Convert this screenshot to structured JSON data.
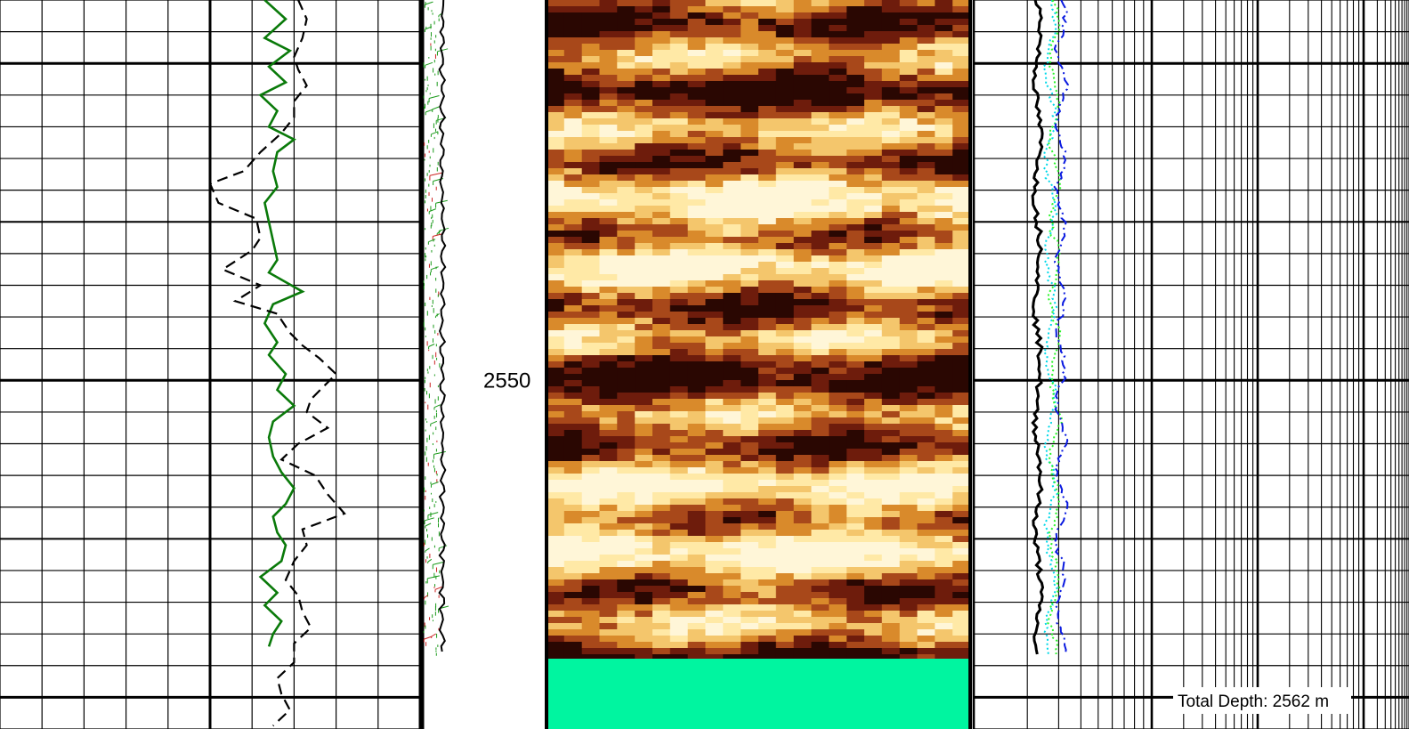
{
  "chart_data": {
    "type": "line",
    "depth_unit": "m",
    "depth_range": [
      2538,
      2561
    ],
    "depth_labels": [
      2550
    ],
    "total_depth": {
      "label": "Total Depth: 2562 m"
    },
    "tracks": [
      {
        "id": "track-1",
        "kind": "linear-grid",
        "curves": [
          {
            "color": "#0a7a0a",
            "style": "solid",
            "points": [
              [
                2538.0,
                0.63
              ],
              [
                2538.6,
                0.68
              ],
              [
                2539.2,
                0.63
              ],
              [
                2539.6,
                0.69
              ],
              [
                2540.1,
                0.64
              ],
              [
                2540.6,
                0.68
              ],
              [
                2541.0,
                0.62
              ],
              [
                2541.5,
                0.66
              ],
              [
                2542.0,
                0.64
              ],
              [
                2542.4,
                0.7
              ],
              [
                2542.8,
                0.66
              ],
              [
                2543.4,
                0.65
              ],
              [
                2543.9,
                0.66
              ],
              [
                2544.4,
                0.63
              ],
              [
                2545.0,
                0.64
              ],
              [
                2545.6,
                0.65
              ],
              [
                2546.2,
                0.66
              ],
              [
                2546.6,
                0.64
              ],
              [
                2547.2,
                0.72
              ],
              [
                2547.6,
                0.65
              ],
              [
                2548.2,
                0.63
              ],
              [
                2548.8,
                0.66
              ],
              [
                2549.2,
                0.64
              ],
              [
                2549.8,
                0.68
              ],
              [
                2550.3,
                0.66
              ],
              [
                2550.8,
                0.7
              ],
              [
                2551.3,
                0.65
              ],
              [
                2551.8,
                0.64
              ],
              [
                2552.4,
                0.65
              ],
              [
                2552.9,
                0.67
              ],
              [
                2553.4,
                0.7
              ],
              [
                2553.9,
                0.68
              ],
              [
                2554.3,
                0.65
              ],
              [
                2554.8,
                0.66
              ],
              [
                2555.2,
                0.68
              ],
              [
                2555.7,
                0.67
              ],
              [
                2556.2,
                0.62
              ],
              [
                2556.7,
                0.66
              ],
              [
                2557.1,
                0.63
              ],
              [
                2557.6,
                0.67
              ],
              [
                2558.0,
                0.65
              ],
              [
                2558.4,
                0.64
              ]
            ]
          },
          {
            "color": "#000000",
            "style": "dashed",
            "points": [
              [
                2538.0,
                0.71
              ],
              [
                2538.6,
                0.73
              ],
              [
                2539.2,
                0.72
              ],
              [
                2539.8,
                0.7
              ],
              [
                2540.2,
                0.71
              ],
              [
                2540.7,
                0.73
              ],
              [
                2541.2,
                0.7
              ],
              [
                2541.7,
                0.7
              ],
              [
                2542.2,
                0.67
              ],
              [
                2542.8,
                0.62
              ],
              [
                2543.4,
                0.58
              ],
              [
                2543.8,
                0.5
              ],
              [
                2544.4,
                0.52
              ],
              [
                2544.9,
                0.61
              ],
              [
                2545.5,
                0.62
              ],
              [
                2545.9,
                0.6
              ],
              [
                2546.5,
                0.53
              ],
              [
                2547.0,
                0.62
              ],
              [
                2547.5,
                0.56
              ],
              [
                2547.9,
                0.66
              ],
              [
                2548.5,
                0.69
              ],
              [
                2548.9,
                0.72
              ],
              [
                2549.3,
                0.76
              ],
              [
                2549.8,
                0.8
              ],
              [
                2550.2,
                0.77
              ],
              [
                2550.6,
                0.74
              ],
              [
                2551.0,
                0.73
              ],
              [
                2551.5,
                0.78
              ],
              [
                2552.0,
                0.71
              ],
              [
                2552.5,
                0.67
              ],
              [
                2553.0,
                0.75
              ],
              [
                2553.6,
                0.78
              ],
              [
                2554.2,
                0.82
              ],
              [
                2554.7,
                0.72
              ],
              [
                2555.2,
                0.73
              ],
              [
                2555.7,
                0.7
              ],
              [
                2556.3,
                0.68
              ],
              [
                2556.8,
                0.71
              ],
              [
                2557.3,
                0.72
              ],
              [
                2557.8,
                0.74
              ],
              [
                2558.3,
                0.7
              ],
              [
                2558.9,
                0.7
              ],
              [
                2559.4,
                0.66
              ],
              [
                2559.9,
                0.67
              ],
              [
                2560.4,
                0.69
              ],
              [
                2560.9,
                0.65
              ]
            ]
          }
        ]
      },
      {
        "id": "track-2",
        "kind": "tadpole",
        "colors": {
          "ticks": "#1a9a1a",
          "marks": "#cc2222",
          "trace": "#000000"
        }
      },
      {
        "id": "track-3",
        "kind": "image-log",
        "colors": [
          "#fff6d8",
          "#ffe9a6",
          "#f4c66c",
          "#d98a2b",
          "#a8481a",
          "#6e1c0c",
          "#2a0702"
        ],
        "fill_below_td": "#00f5a0"
      },
      {
        "id": "track-4",
        "kind": "log-grid",
        "curves": [
          {
            "color": "#000000",
            "style": "solid"
          },
          {
            "color": "#00d8e8",
            "style": "dotted"
          },
          {
            "color": "#2bf52b",
            "style": "dotted"
          },
          {
            "color": "#0a1ae0",
            "style": "dashdot"
          }
        ]
      }
    ]
  }
}
